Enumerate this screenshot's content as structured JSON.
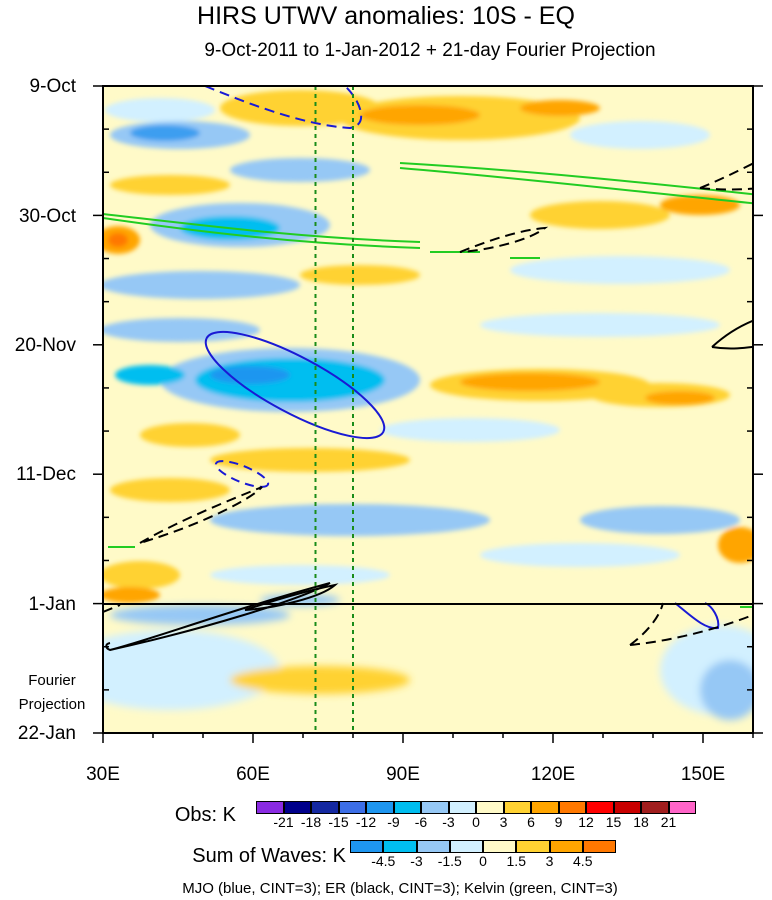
{
  "chart_data": {
    "type": "heatmap",
    "title": "HIRS UTWV anomalies: 10S - EQ",
    "subtitle": "9-Oct-2011 to 1-Jan-2012 + 21-day Fourier Projection",
    "x_ticks": [
      "30E",
      "60E",
      "90E",
      "120E",
      "150E"
    ],
    "x_values": [
      30,
      60,
      90,
      120,
      150
    ],
    "x_range": [
      30,
      160
    ],
    "y_ticks": [
      "9-Oct",
      "30-Oct",
      "20-Nov",
      "11-Dec",
      "1-Jan",
      "22-Jan"
    ],
    "y_days": [
      0,
      21,
      42,
      63,
      84,
      105
    ],
    "projection_start_day": 84,
    "projection_label": [
      "Fourier",
      "Projection"
    ],
    "reference_lines_lon": [
      72.5,
      80
    ],
    "obs_colorbar": {
      "label": "Obs: K",
      "levels": [
        "-21",
        "-18",
        "-15",
        "-12",
        "-9",
        "-6",
        "-3",
        "0",
        "3",
        "6",
        "9",
        "12",
        "15",
        "18",
        "21"
      ],
      "colors": [
        "#8a2be2",
        "#00008b",
        "#1428a0",
        "#3c6ee6",
        "#1e96f0",
        "#00bef0",
        "#96c8f5",
        "#d2f0ff",
        "#fffac8",
        "#ffd232",
        "#ffa500",
        "#ff7800",
        "#ff0000",
        "#c80000",
        "#a01e1e",
        "#ff64c8"
      ]
    },
    "waves_colorbar": {
      "label": "Sum of Waves: K",
      "levels": [
        "-4.5",
        "-3",
        "-1.5",
        "0",
        "1.5",
        "3",
        "4.5"
      ],
      "colors": [
        "#1e96f0",
        "#00bef0",
        "#96c8f5",
        "#d2f0ff",
        "#fffac8",
        "#ffd232",
        "#ffa500",
        "#ff7800"
      ]
    },
    "footnote": "MJO (blue, CINT=3); ER (black, CINT=3); Kelvin (green, CINT=3)"
  }
}
